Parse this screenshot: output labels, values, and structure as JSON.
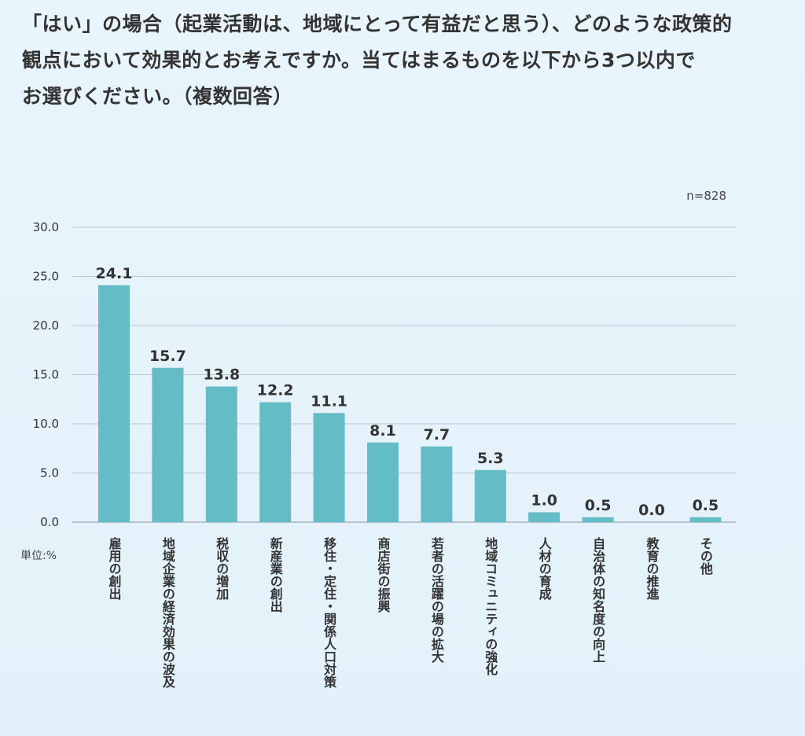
{
  "question": {
    "lines": [
      "「はい」の場合（起業活動は、地域にとって有益だと思う）、どのような政策的",
      "観点において効果的とお考えですか。当てはまるものを以下から3つ以内で",
      "お選びください。（複数回答）"
    ]
  },
  "sample_size": "n=828",
  "unit": "単位:%",
  "colors": {
    "bar": "#63bcc6",
    "grid": "#b9c6cf",
    "baseline": "#9aa9b4"
  },
  "chart_data": {
    "type": "bar",
    "title": "「はい」の場合（起業活動は、地域にとって有益だと思う）、どのような政策的観点において効果的とお考えですか。当てはまるものを以下から3つ以内でお選びください。（複数回答）",
    "categories": [
      "雇用の創出",
      "地域企業の経済効果の波及",
      "税収の増加",
      "新産業の創出",
      "移住・定住・関係人口対策",
      "商店街の振興",
      "若者の活躍の場の拡大",
      "地域コミュニティの強化",
      "人材の育成",
      "自治体の知名度の向上",
      "教育の推進",
      "その他"
    ],
    "values": [
      24.1,
      15.7,
      13.8,
      12.2,
      11.1,
      8.1,
      7.7,
      5.3,
      1.0,
      0.5,
      0.0,
      0.5
    ],
    "value_labels": [
      "24.1",
      "15.7",
      "13.8",
      "12.2",
      "11.1",
      "8.1",
      "7.7",
      "5.3",
      "1.0",
      "0.5",
      "0.0",
      "0.5"
    ],
    "yticks": [
      "0.0",
      "5.0",
      "10.0",
      "15.0",
      "20.0",
      "25.0",
      "30.0"
    ],
    "ylim": [
      0,
      30
    ],
    "xlabel": "",
    "ylabel": "単位:%",
    "grid": true
  }
}
